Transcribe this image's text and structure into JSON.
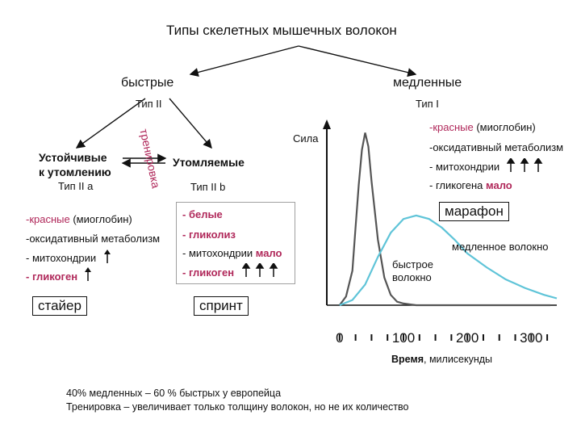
{
  "title": "Типы скелетных мышечных волокон",
  "fast": {
    "label": "быстрые",
    "type": "Тип II"
  },
  "slow": {
    "label": "медленные",
    "type": "Тип I",
    "props": [
      {
        "text": "-красные",
        "extra": " (миоглобин)"
      },
      {
        "text": "-оксидативный метаболизм"
      },
      {
        "text": "- митохондрии",
        "arrows": 3
      },
      {
        "text": "- гликогена ",
        "bold": "мало"
      }
    ],
    "box": "марафон"
  },
  "training": "тренировка",
  "type2a": {
    "name_line1": "Устойчивые",
    "name_line2": "к утомлению",
    "type": "Тип II a",
    "props": [
      {
        "text": "-красные",
        "extra": " (миоглобин)"
      },
      {
        "text": "-оксидативный метаболизм"
      },
      {
        "text": "- митохондрии",
        "arrows": 1
      },
      {
        "text": "- гликоген",
        "arrows": 1
      }
    ],
    "box": "стайер"
  },
  "type2b": {
    "name": "Утомляемые",
    "type": "Тип II b",
    "props": [
      {
        "text": "- белые"
      },
      {
        "text": "- гликолиз"
      },
      {
        "text": "- митохондрии ",
        "bold": "мало"
      },
      {
        "text": "- гликоген",
        "arrows": 3
      }
    ],
    "box": "спринт"
  },
  "chart_data": {
    "type": "line",
    "ylabel": "Сила",
    "xlabel_bold": "Время",
    "xlabel_rest": ", милисекунды",
    "xticks": [
      "0",
      "100",
      "200",
      "300"
    ],
    "xlim": [
      -20,
      340
    ],
    "series": [
      {
        "name": "быстрое волокно",
        "color": "#555555",
        "x": [
          0,
          10,
          20,
          25,
          30,
          35,
          40,
          45,
          50,
          60,
          70,
          80,
          90,
          100,
          120,
          150,
          200,
          250,
          300,
          330
        ],
        "y": [
          0,
          0.05,
          0.2,
          0.45,
          0.7,
          0.9,
          1.0,
          0.92,
          0.72,
          0.38,
          0.16,
          0.06,
          0.02,
          0.01,
          0.0,
          0.0,
          0.0,
          0.0,
          0.0,
          0.0
        ]
      },
      {
        "name": "медленное волокно",
        "color": "#5fc4d8",
        "x": [
          0,
          20,
          40,
          60,
          80,
          100,
          120,
          140,
          160,
          180,
          200,
          230,
          260,
          290,
          320,
          340
        ],
        "y": [
          0,
          0.03,
          0.12,
          0.28,
          0.42,
          0.5,
          0.52,
          0.5,
          0.45,
          0.38,
          0.3,
          0.22,
          0.15,
          0.1,
          0.06,
          0.04
        ]
      }
    ]
  },
  "footer": {
    "line1": "40% медленных – 60 % быстрых у европейца",
    "line2": "Тренировка – увеличивает только толщину волокон, но не их количество"
  }
}
